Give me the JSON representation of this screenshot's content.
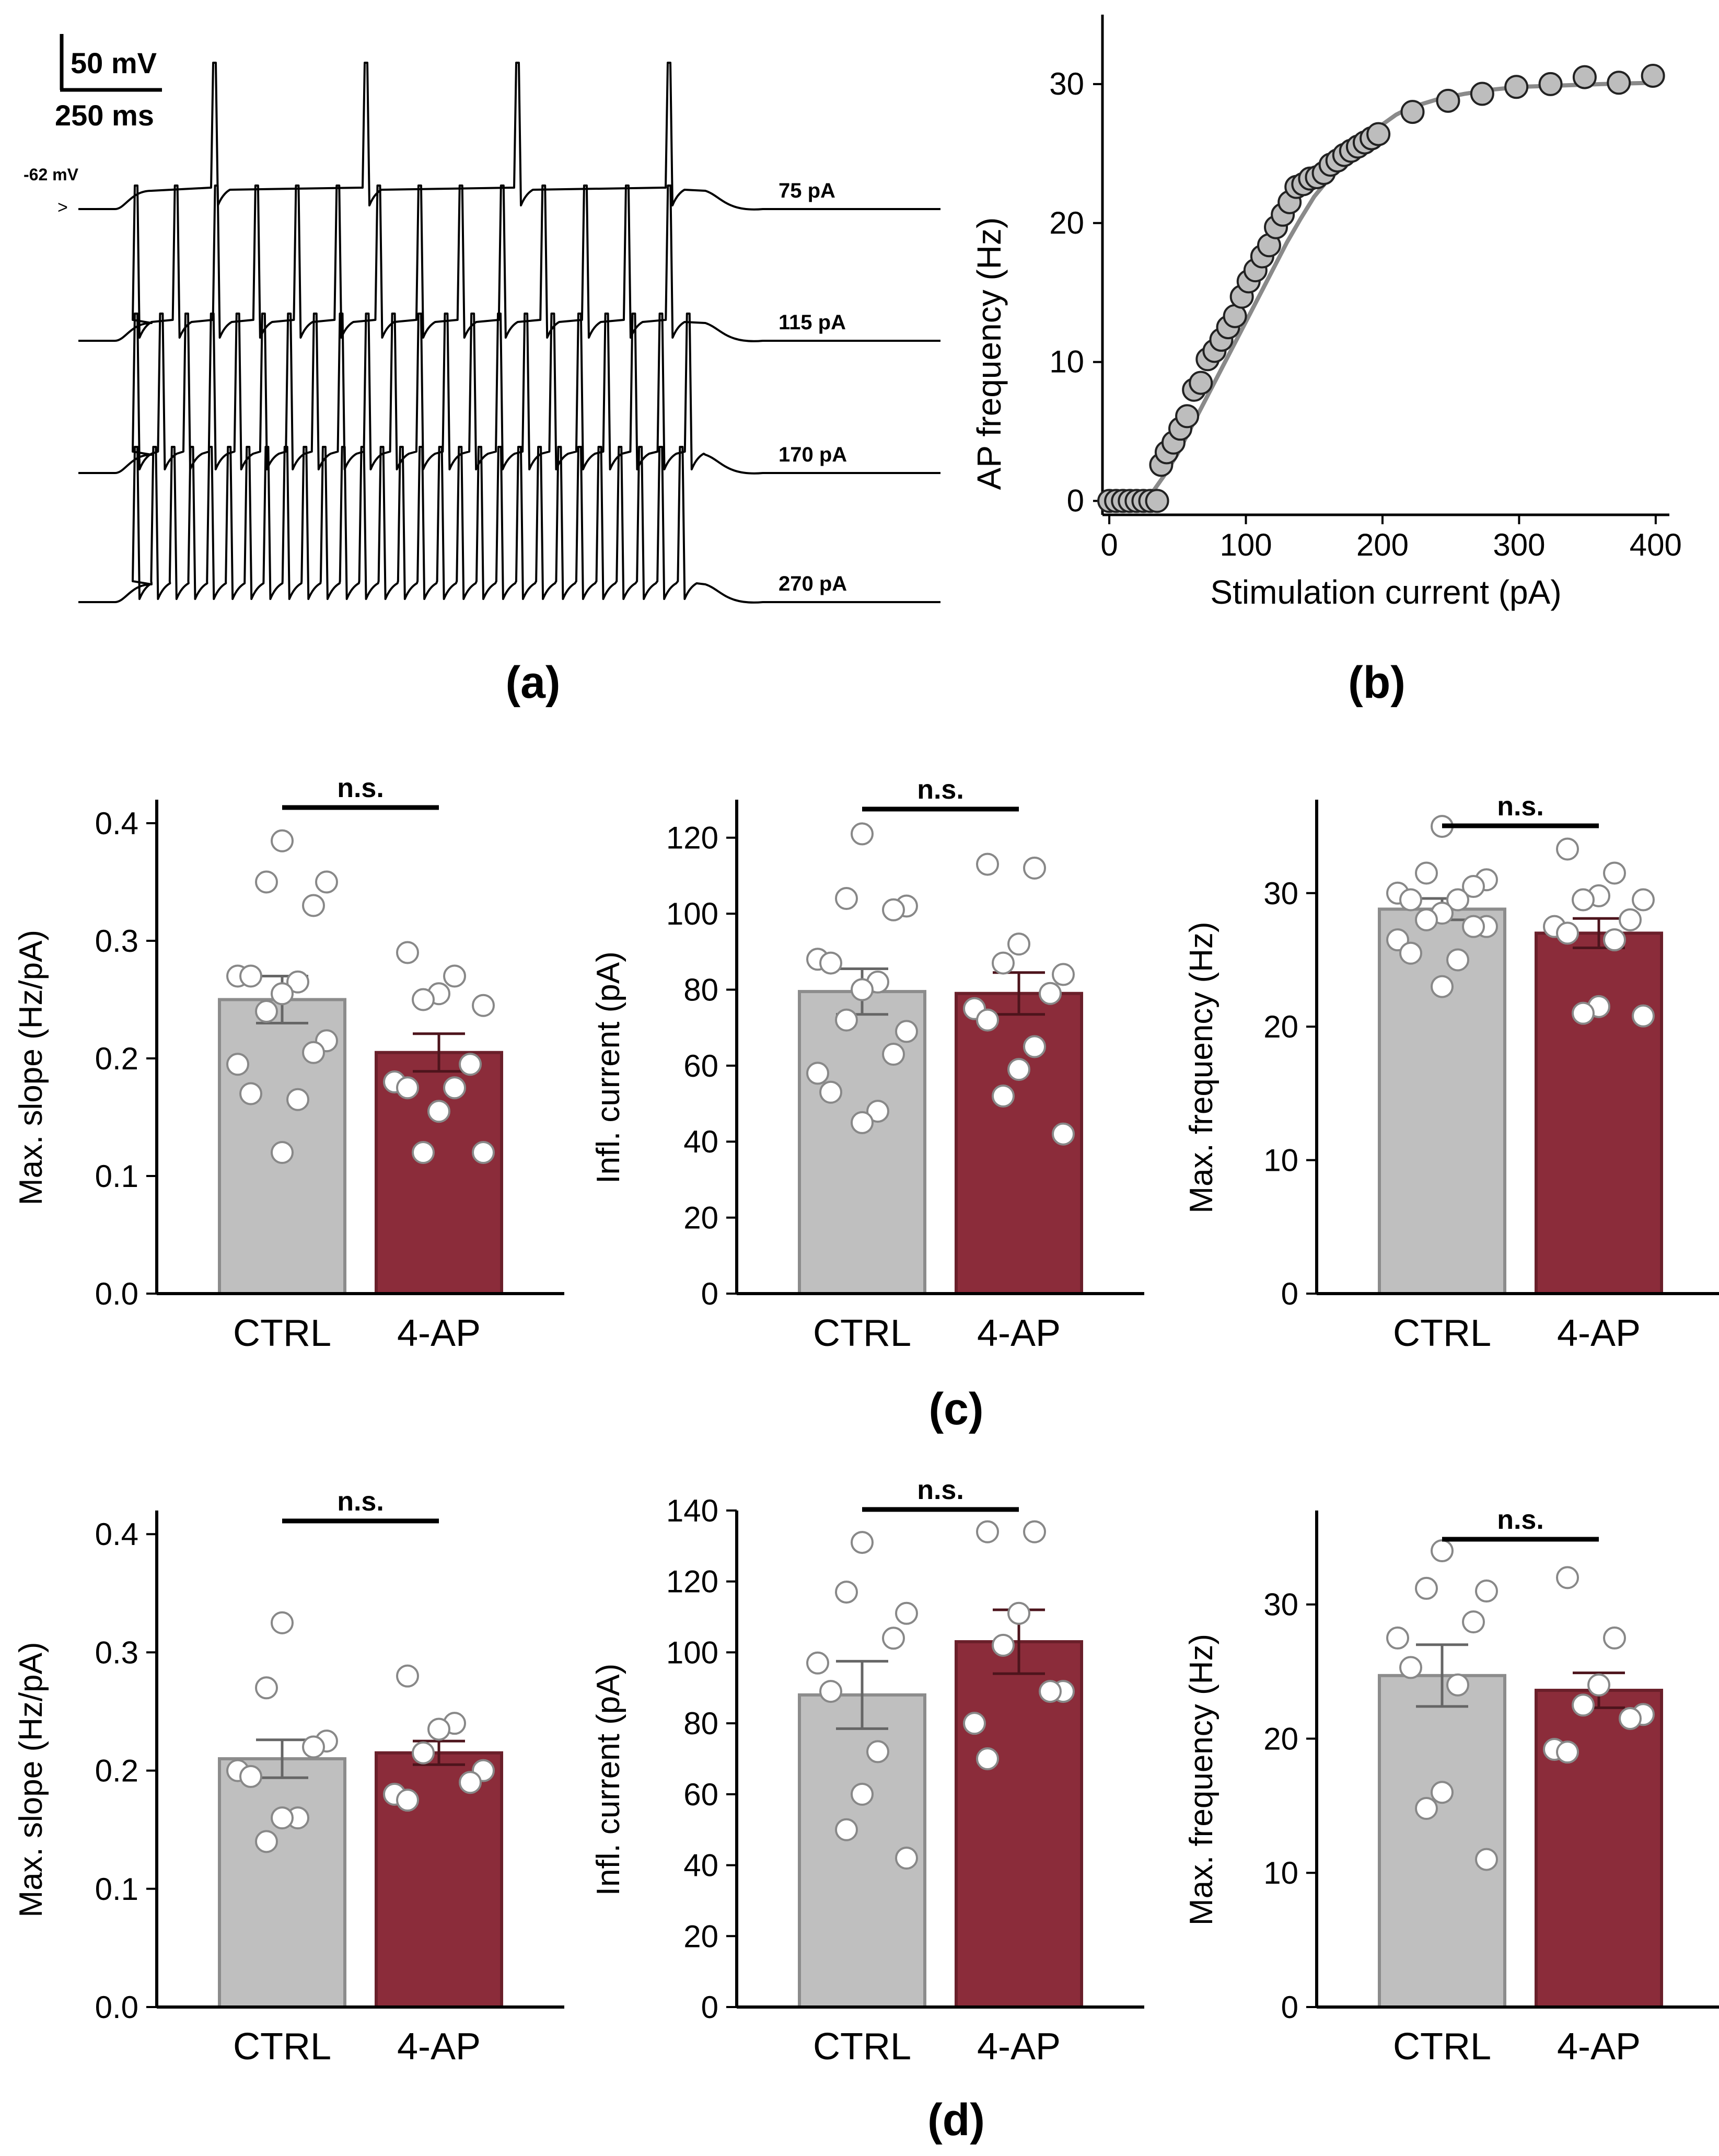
{
  "colors": {
    "ctrl": "#bfbfbf",
    "ctrl_edge": "#8c8c8c",
    "ap": "#8b2c3a",
    "ap_edge": "#6a1f2a",
    "axis": "#000000",
    "trace": "#000000",
    "fit": "#8a8a8a",
    "point_fill": "#bdbdbd",
    "grey_text": "#808080"
  },
  "panel_labels": {
    "a": "(a)",
    "b": "(b)",
    "c": "(c)",
    "d": "(d)"
  },
  "scale_bar": {
    "voltage": "50 mV",
    "time": "250 ms"
  },
  "rmp": {
    "label": "-62 mV",
    "marker": ">"
  },
  "chart_data": [
    {
      "id": "a",
      "type": "line",
      "title": "",
      "traces": [
        {
          "label": "75 pA",
          "n_spikes": 4
        },
        {
          "label": "115 pA",
          "n_spikes": 14
        },
        {
          "label": "170 pA",
          "n_spikes": 22
        },
        {
          "label": "270 pA",
          "n_spikes": 30
        }
      ]
    },
    {
      "id": "b",
      "type": "scatter",
      "xlabel": "Stimulation current (pA)",
      "ylabel": "AP frequency (Hz)",
      "xlim": [
        -5,
        410
      ],
      "ylim": [
        -1,
        35
      ],
      "xticks": [
        0,
        100,
        200,
        300,
        400
      ],
      "yticks": [
        0,
        10,
        20,
        30
      ],
      "x": [
        0,
        5,
        10,
        15,
        20,
        25,
        30,
        35,
        38,
        42,
        47,
        52,
        57,
        62,
        67,
        72,
        77,
        82,
        87,
        92,
        97,
        102,
        107,
        112,
        117,
        122,
        127,
        132,
        137,
        142,
        147,
        152,
        157,
        162,
        167,
        172,
        177,
        182,
        187,
        192,
        197,
        222,
        248,
        273,
        298,
        323,
        348,
        373,
        398
      ],
      "y": [
        0,
        0,
        0,
        0,
        0,
        0,
        0,
        0,
        2.6,
        3.5,
        4.2,
        5.2,
        6.1,
        8.0,
        8.5,
        10.2,
        10.8,
        11.6,
        12.5,
        13.3,
        14.7,
        15.8,
        16.6,
        17.6,
        18.4,
        19.7,
        20.6,
        21.5,
        22.6,
        22.8,
        23.2,
        23.3,
        23.6,
        24.2,
        24.5,
        24.9,
        25.2,
        25.5,
        25.8,
        26.1,
        26.4,
        28.0,
        28.8,
        29.3,
        29.8,
        30.0,
        30.5,
        30.1,
        30.6
      ],
      "fit_x": [
        0,
        10,
        20,
        30,
        40,
        50,
        60,
        70,
        80,
        90,
        100,
        110,
        120,
        130,
        140,
        150,
        160,
        170,
        180,
        190,
        200,
        210,
        220,
        240,
        260,
        280,
        300,
        330,
        360,
        400
      ],
      "fit_y": [
        0,
        0,
        0,
        0.4,
        1.8,
        3.4,
        5.3,
        7.2,
        9.1,
        11.0,
        12.9,
        14.8,
        16.7,
        18.6,
        20.3,
        21.9,
        23.1,
        24.2,
        25.3,
        26.3,
        27.1,
        27.8,
        28.3,
        28.9,
        29.3,
        29.6,
        29.8,
        29.9,
        30.0,
        30.1
      ]
    },
    {
      "id": "c1",
      "type": "bar",
      "ylabel": "Max. slope (Hz/pA)",
      "ylim": [
        0,
        0.42
      ],
      "yticks": [
        0.0,
        0.1,
        0.2,
        0.3,
        0.4
      ],
      "tick_decimals": 1,
      "significance": "n.s.",
      "categories": [
        "CTRL",
        "4-AP"
      ],
      "values": [
        0.25,
        0.205
      ],
      "sem": [
        0.02,
        0.016
      ],
      "points": [
        [
          0.385,
          0.35,
          0.35,
          0.33,
          0.27,
          0.27,
          0.265,
          0.255,
          0.24,
          0.215,
          0.205,
          0.195,
          0.17,
          0.165,
          0.12
        ],
        [
          0.29,
          0.27,
          0.255,
          0.25,
          0.245,
          0.195,
          0.18,
          0.175,
          0.175,
          0.155,
          0.12,
          0.12
        ]
      ]
    },
    {
      "id": "c2",
      "type": "bar",
      "ylabel": "Infl. current (pA)",
      "ylim": [
        0,
        130
      ],
      "yticks": [
        0,
        20,
        40,
        60,
        80,
        100,
        120
      ],
      "tick_decimals": 0,
      "significance": "n.s.",
      "categories": [
        "CTRL",
        "4-AP"
      ],
      "values": [
        79.5,
        79
      ],
      "sem": [
        6,
        5.5
      ],
      "points": [
        [
          121,
          104,
          102,
          101,
          88,
          87,
          82,
          80,
          72,
          69,
          63,
          58,
          53,
          48,
          45
        ],
        [
          113,
          112,
          92,
          87,
          84,
          79,
          75,
          72,
          65,
          59,
          52,
          42
        ]
      ]
    },
    {
      "id": "c3",
      "type": "bar",
      "ylabel": "Max. frequency (Hz)",
      "ylim": [
        0,
        37
      ],
      "yticks": [
        0,
        10,
        20,
        30
      ],
      "tick_decimals": 0,
      "significance": "n.s.",
      "categories": [
        "CTRL",
        "4-AP"
      ],
      "values": [
        28.8,
        27
      ],
      "sem": [
        0.8,
        1.1
      ],
      "points": [
        [
          35,
          31.5,
          31,
          30.5,
          30,
          29.5,
          29.5,
          28.5,
          28,
          27.5,
          27.5,
          26.5,
          25.5,
          25,
          23
        ],
        [
          33.3,
          31.5,
          29.8,
          29.5,
          29.5,
          28,
          27.5,
          27,
          26.5,
          21.5,
          21,
          20.8
        ]
      ]
    },
    {
      "id": "d1",
      "type": "bar",
      "ylabel": "Max. slope (Hz/pA)",
      "ylim": [
        0,
        0.42
      ],
      "yticks": [
        0.0,
        0.1,
        0.2,
        0.3,
        0.4
      ],
      "tick_decimals": 1,
      "significance": "n.s.",
      "categories": [
        "CTRL",
        "4-AP"
      ],
      "values": [
        0.21,
        0.215
      ],
      "sem": [
        0.016,
        0.01
      ],
      "points": [
        [
          0.325,
          0.27,
          0.225,
          0.22,
          0.2,
          0.195,
          0.16,
          0.16,
          0.14
        ],
        [
          0.28,
          0.24,
          0.235,
          0.215,
          0.2,
          0.19,
          0.18,
          0.175
        ]
      ]
    },
    {
      "id": "d2",
      "type": "bar",
      "ylabel": "Infl. current (pA)",
      "ylim": [
        0,
        140
      ],
      "yticks": [
        0,
        20,
        40,
        60,
        80,
        100,
        120,
        140
      ],
      "tick_decimals": 0,
      "significance": "n.s.",
      "categories": [
        "CTRL",
        "4-AP"
      ],
      "values": [
        88,
        103
      ],
      "sem": [
        9.5,
        9
      ],
      "points": [
        [
          131,
          117,
          111,
          104,
          97,
          89,
          72,
          60,
          50,
          42
        ],
        [
          134,
          134,
          111,
          102,
          89,
          89,
          80,
          70
        ]
      ]
    },
    {
      "id": "d3",
      "type": "bar",
      "ylabel": "Max. frequency (Hz)",
      "ylim": [
        0,
        37
      ],
      "yticks": [
        0,
        10,
        20,
        30
      ],
      "tick_decimals": 0,
      "significance": "n.s.",
      "categories": [
        "CTRL",
        "4-AP"
      ],
      "values": [
        24.7,
        23.6
      ],
      "sem": [
        2.3,
        1.3
      ],
      "points": [
        [
          34,
          31.2,
          31,
          28.7,
          27.5,
          25.3,
          24,
          16,
          14.8,
          11
        ],
        [
          32,
          27.5,
          24,
          22.5,
          21.8,
          21.5,
          19.2,
          19
        ]
      ]
    }
  ]
}
